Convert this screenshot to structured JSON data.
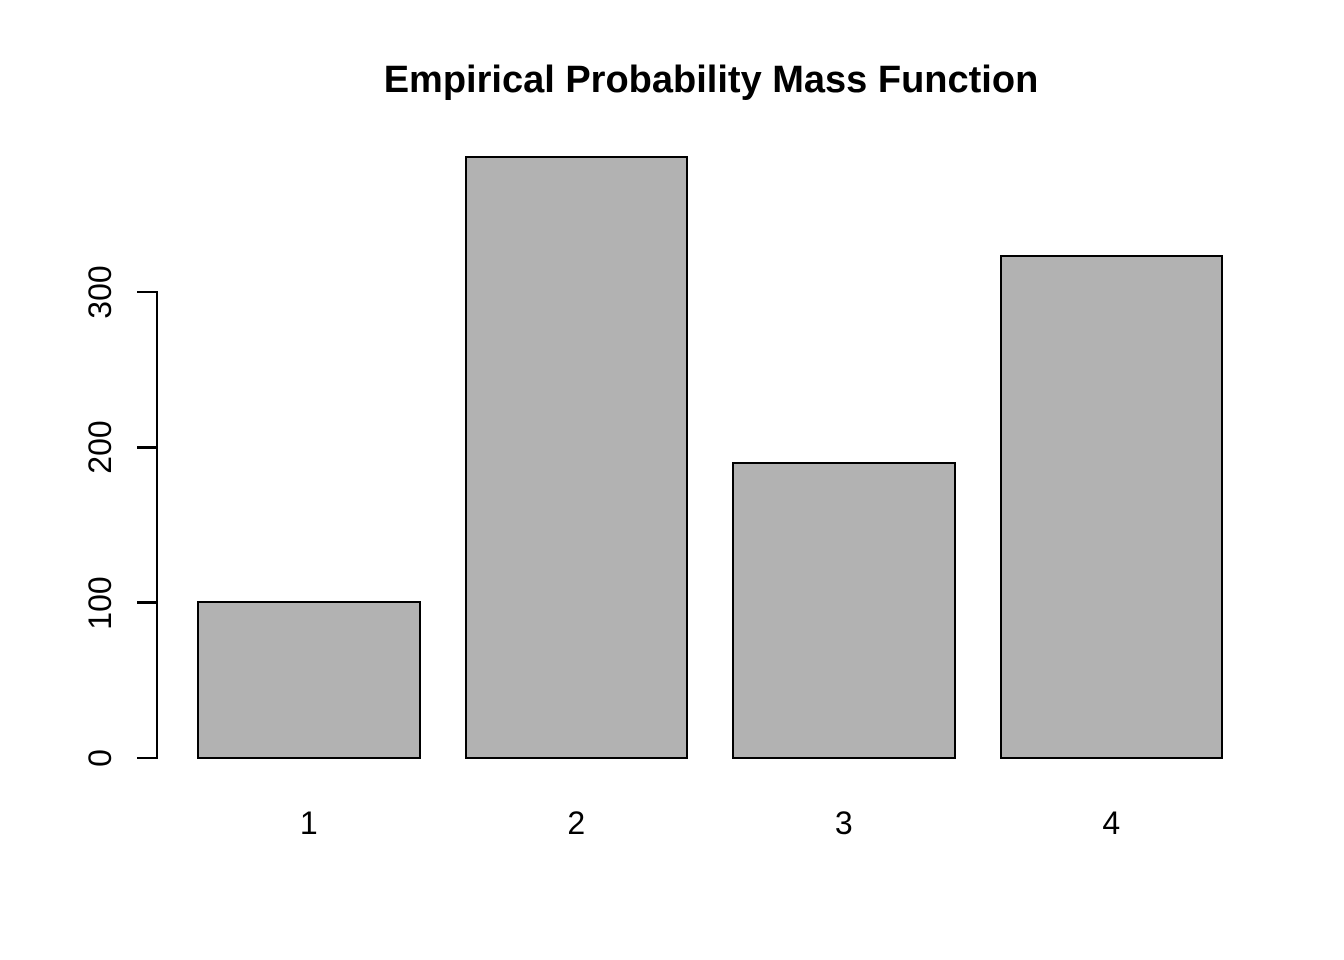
{
  "chart_data": {
    "type": "bar",
    "title": "Empirical Probability Mass Function",
    "categories": [
      "1",
      "2",
      "3",
      "4"
    ],
    "values": [
      100,
      387,
      190,
      323
    ],
    "xlabel": "",
    "ylabel": "",
    "yticks": [
      0,
      100,
      200,
      300
    ],
    "ylim": [
      0,
      390
    ],
    "grid": false,
    "legend_position": "none",
    "colors": {
      "bar_fill": "#b2b2b2",
      "bar_border": "#000000",
      "axis": "#000000",
      "text": "#000000",
      "background": "#ffffff"
    }
  }
}
